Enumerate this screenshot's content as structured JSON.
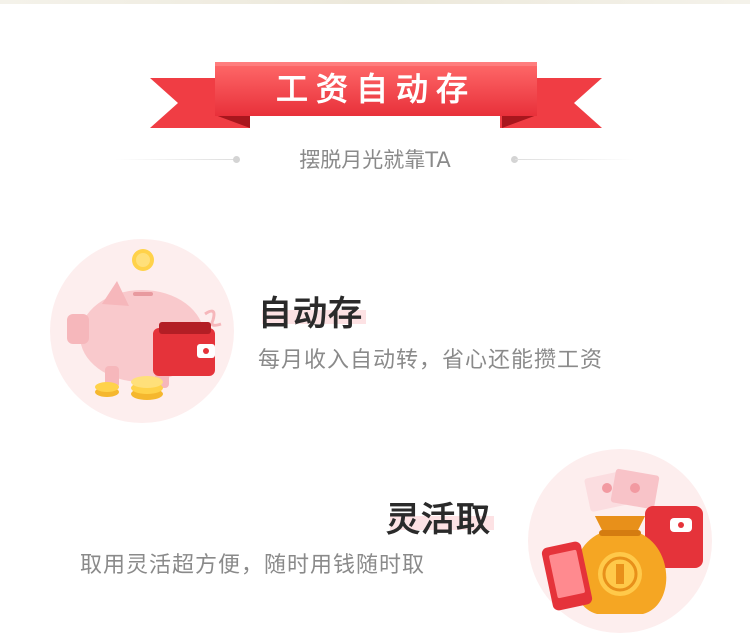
{
  "banner": {
    "title": "工资自动存",
    "subtitle": "摆脱月光就靠TA"
  },
  "features": [
    {
      "title": "自动存",
      "description": "每月收入自动转，省心还能攒工资",
      "illustration": "piggy-bank-wallet-coins"
    },
    {
      "title": "灵活取",
      "description": "取用灵活超方便，随时用钱随时取",
      "illustration": "money-bag-phone-wallet"
    }
  ],
  "colors": {
    "ribbon_red": "#e8343c",
    "ribbon_light": "#ff6f6f",
    "ribbon_dark": "#b71f26",
    "title_text": "#2a2a2a",
    "desc_text": "#8a8a8a",
    "highlight_pink": "#fde2e4",
    "circle_bg": "#fdeeee"
  }
}
